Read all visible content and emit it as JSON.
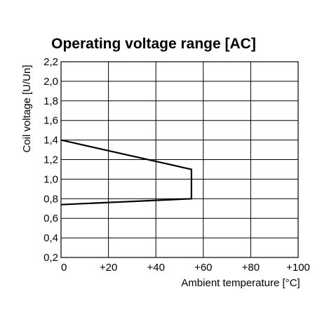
{
  "chart_data": {
    "type": "line",
    "title": "Operating voltage range [AC]",
    "xlabel": "Ambient temperature [°C]",
    "ylabel": "Coil voltage [U/Un]",
    "xlim": [
      0,
      100
    ],
    "ylim": [
      0.2,
      2.2
    ],
    "x_ticks": [
      0,
      20,
      40,
      60,
      80,
      100
    ],
    "x_tick_labels": [
      "0",
      "+20",
      "+40",
      "+60",
      "+80",
      "+100"
    ],
    "y_ticks": [
      0.2,
      0.4,
      0.6,
      0.8,
      1.0,
      1.2,
      1.4,
      1.6,
      1.8,
      2.0,
      2.2
    ],
    "y_tick_labels": [
      "0,2",
      "0,4",
      "0,6",
      "0,8",
      "1,0",
      "1,2",
      "1,4",
      "1,6",
      "1,8",
      "2,0",
      "2,2"
    ],
    "grid": true,
    "series": [
      {
        "x": [
          0,
          55,
          55,
          0
        ],
        "y": [
          1.4,
          1.1,
          0.8,
          0.74
        ]
      }
    ]
  }
}
